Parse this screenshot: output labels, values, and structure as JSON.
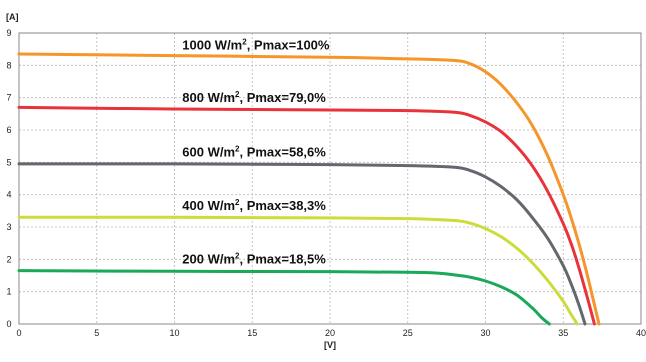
{
  "chart_data": {
    "type": "line",
    "ylabel": "[A]",
    "xlabel": "[V]",
    "xlim": [
      0,
      40
    ],
    "ylim": [
      0,
      9
    ],
    "x_ticks": [
      "0",
      "5",
      "10",
      "15",
      "20",
      "25",
      "30",
      "35",
      "40"
    ],
    "y_ticks": [
      "0",
      "1",
      "2",
      "3",
      "4",
      "5",
      "6",
      "7",
      "8",
      "9"
    ],
    "grid": true,
    "series": [
      {
        "label_main": "1000 W/m",
        "label_sup": "2",
        "label_tail": ", Pmax=100%",
        "color": "#f5952a",
        "x": [
          0,
          10,
          20,
          25,
          28,
          29,
          30,
          31,
          32,
          33,
          34,
          35,
          35.5,
          36,
          36.5,
          37,
          37.3
        ],
        "y": [
          8.35,
          8.3,
          8.25,
          8.2,
          8.15,
          8.05,
          7.8,
          7.4,
          6.85,
          6.15,
          5.2,
          4.0,
          3.3,
          2.5,
          1.6,
          0.6,
          0
        ]
      },
      {
        "label_main": "800 W/m",
        "label_sup": "2",
        "label_tail": ", Pmax=79,0%",
        "color": "#e8333a",
        "x": [
          0,
          10,
          20,
          25,
          28,
          29,
          30,
          31,
          32,
          33,
          34,
          35,
          35.5,
          36,
          36.5,
          37
        ],
        "y": [
          6.7,
          6.65,
          6.62,
          6.6,
          6.55,
          6.45,
          6.25,
          5.95,
          5.5,
          4.9,
          4.1,
          3.1,
          2.5,
          1.75,
          0.9,
          0
        ]
      },
      {
        "label_main": "600 W/m",
        "label_sup": "2",
        "label_tail": ", Pmax=58,6%",
        "color": "#66666e",
        "x": [
          0,
          10,
          20,
          25,
          28,
          29,
          30,
          31,
          32,
          33,
          34,
          35,
          35.5,
          36,
          36.4
        ],
        "y": [
          4.95,
          4.95,
          4.93,
          4.9,
          4.85,
          4.75,
          4.55,
          4.25,
          3.85,
          3.3,
          2.65,
          1.8,
          1.25,
          0.6,
          0
        ]
      },
      {
        "label_main": "400 W/m",
        "label_sup": "2",
        "label_tail": ", Pmax=38,3%",
        "color": "#cddc3c",
        "x": [
          0,
          10,
          20,
          25,
          28,
          29,
          30,
          31,
          32,
          33,
          34,
          35,
          35.5,
          35.9
        ],
        "y": [
          3.3,
          3.3,
          3.28,
          3.26,
          3.2,
          3.12,
          2.95,
          2.7,
          2.35,
          1.9,
          1.35,
          0.7,
          0.3,
          0
        ]
      },
      {
        "label_main": "200 W/m",
        "label_sup": "2",
        "label_tail": ", Pmax=18,5%",
        "color": "#1aa85a",
        "x": [
          0,
          10,
          20,
          25,
          27,
          28,
          29,
          30,
          31,
          32,
          33,
          33.6,
          34.1
        ],
        "y": [
          1.65,
          1.63,
          1.62,
          1.6,
          1.57,
          1.52,
          1.45,
          1.33,
          1.15,
          0.9,
          0.5,
          0.2,
          0
        ]
      }
    ]
  }
}
